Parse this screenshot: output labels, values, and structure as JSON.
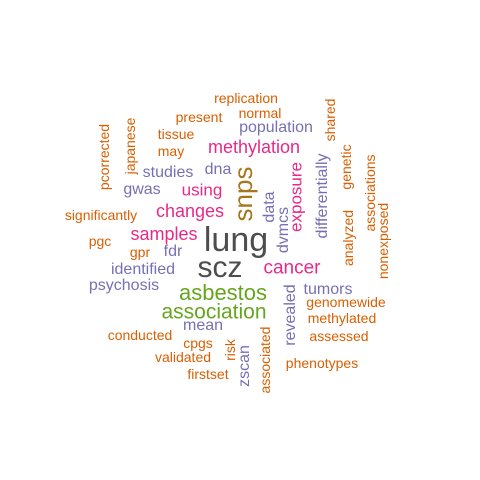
{
  "wordcloud": {
    "colors": {
      "orange": "#d95f02",
      "purple": "#7570b3",
      "magenta": "#e7298a",
      "green": "#66a61e",
      "gray": "#4d4d4d",
      "brown": "#a6761d"
    },
    "words": {
      "lung": "lung",
      "scz": "scz",
      "snps": "snps",
      "asbestos": "asbestos",
      "association": "association",
      "cancer": "cancer",
      "methylation": "methylation",
      "changes": "changes",
      "samples": "samples",
      "using": "using",
      "exposure": "exposure",
      "population": "population",
      "revealed": "revealed",
      "dvmcs": "dvmcs",
      "differentially": "differentially",
      "tumors": "tumors",
      "genomewide": "genomewide",
      "methylated": "methylated",
      "assessed": "assessed",
      "phenotypes": "phenotypes",
      "replication": "replication",
      "normal": "normal",
      "present": "present",
      "tissue": "tissue",
      "may": "may",
      "studies": "studies",
      "dna": "dna",
      "gwas": "gwas",
      "data": "data",
      "significantly": "significantly",
      "pgc": "pgc",
      "gpr": "gpr",
      "fdr": "fdr",
      "identified": "identified",
      "psychosis": "psychosis",
      "mean": "mean",
      "conducted": "conducted",
      "cpgs": "cpgs",
      "validated": "validated",
      "firstset": "firstset",
      "risk": "risk",
      "zscan": "zscan",
      "associated": "associated",
      "pcorrected": "pcorrected",
      "japanese": "japanese",
      "shared": "shared",
      "genetic": "genetic",
      "analyzed": "analyzed",
      "associations": "associations",
      "nonexposed": "nonexposed"
    }
  }
}
